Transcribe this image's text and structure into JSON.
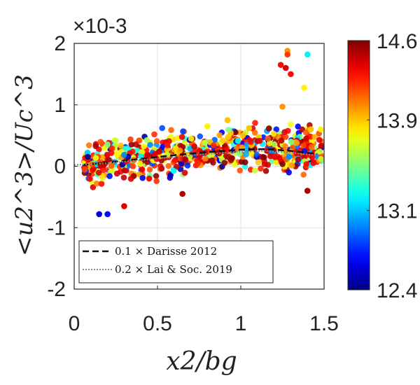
{
  "chart_data": {
    "type": "scatter",
    "title": "",
    "xlabel": "x2/bg",
    "ylabel": "<u2^3>/Uc^3",
    "exponent_label": "×10-3",
    "xlim": [
      0,
      1.5
    ],
    "ylim": [
      -2,
      2
    ],
    "x_ticks": [
      "0",
      "0.5",
      "1",
      "1.5"
    ],
    "x_tick_values": [
      0,
      0.5,
      1,
      1.5
    ],
    "y_ticks": [
      "2",
      "1",
      "0",
      "-1",
      "-2"
    ],
    "y_tick_values": [
      2,
      1,
      0,
      -1,
      -2
    ],
    "grid": true,
    "colorbar": {
      "colormap": "jet",
      "range": [
        12.4,
        14.6
      ],
      "ticks": [
        "14.6",
        "13.9",
        "13.1",
        "12.4"
      ],
      "tick_values": [
        14.6,
        13.9,
        13.1,
        12.4
      ]
    },
    "series": [
      {
        "name": "0.1 × Darisse 2012",
        "style": "dashed",
        "color": "#111111",
        "x": [
          0.05,
          0.2,
          0.4,
          0.6,
          0.8,
          1.0,
          1.15,
          1.3,
          1.45
        ],
        "y": [
          0.02,
          0.06,
          0.12,
          0.18,
          0.23,
          0.27,
          0.28,
          0.25,
          0.2
        ]
      },
      {
        "name": "0.2 × Lai & Soc. 2019",
        "style": "dotted",
        "color": "#888888",
        "x": [
          0.0,
          0.2,
          0.4,
          0.6,
          0.8,
          1.0,
          1.15,
          1.3,
          1.45
        ],
        "y": [
          0.02,
          0.05,
          0.1,
          0.15,
          0.2,
          0.24,
          0.25,
          0.22,
          0.18
        ]
      }
    ],
    "scatter_description": "Dense cloud of colored markers between x2/bg 0.05 and 1.5 following the trend lines, mostly red-orange (high values) with some yellow/green/cyan/blue points; outliers near 1.3 reach ~1.9.",
    "scatter_samples": [
      [
        1.28,
        1.88,
        14.0
      ],
      [
        1.28,
        1.82,
        14.2
      ],
      [
        1.4,
        1.82,
        13.2
      ],
      [
        1.24,
        1.65,
        14.3
      ],
      [
        1.27,
        1.6,
        14.4
      ],
      [
        1.3,
        1.5,
        14.3
      ],
      [
        1.38,
        1.28,
        13.8
      ],
      [
        1.25,
        0.97,
        14.0
      ],
      [
        0.15,
        -0.78,
        12.6
      ],
      [
        0.2,
        -0.78,
        12.7
      ],
      [
        0.92,
        0.75,
        13.9
      ],
      [
        0.8,
        0.65,
        13.8
      ],
      [
        1.42,
        0.6,
        13.9
      ],
      [
        1.48,
        0.6,
        13.8
      ],
      [
        1.05,
        0.62,
        13.9
      ],
      [
        0.3,
        -0.65,
        14.4
      ],
      [
        0.45,
        -0.2,
        14.3
      ],
      [
        1.4,
        -0.4,
        14.5
      ],
      [
        0.65,
        -0.45,
        14.5
      ]
    ]
  }
}
